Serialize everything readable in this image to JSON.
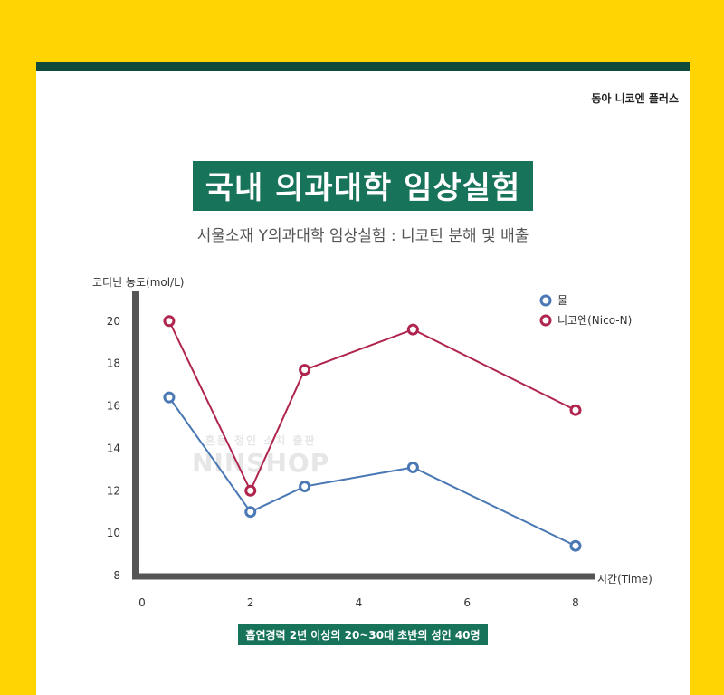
{
  "brand": "동아 니코엔 플러스",
  "title": "국내 의과대학 임상실험",
  "subtitle": "서울소재 Y의과대학 임상실험 : 니코틴 분해 및 배출",
  "footnote": "흡연경력 2년 이상의 20~30대 초반의 성인 40명",
  "watermark": {
    "line1": "흔들 정인 소치 출판",
    "line2": "NINSHOP"
  },
  "colors": {
    "background": "#FFD400",
    "header_bar": "#0F4A3A",
    "title_bg": "#17735A",
    "water": "#4A78B4",
    "nico": "#B0254D",
    "axis": "#555555"
  },
  "chart_data": {
    "type": "line",
    "ylabel": "코티닌 농도(mol/L)",
    "xlabel": "시간(Time)",
    "x_ticks": [
      0,
      2,
      4,
      6,
      8
    ],
    "y_ticks": [
      8,
      10,
      12,
      14,
      16,
      18,
      20
    ],
    "xlim": [
      0,
      8
    ],
    "ylim": [
      8,
      20.8
    ],
    "grid": false,
    "legend_position": "top-right",
    "series": [
      {
        "name": "물",
        "color": "#4A78B4",
        "x": [
          0.5,
          2,
          3,
          5,
          8
        ],
        "y": [
          16.4,
          11.0,
          12.2,
          13.1,
          9.4
        ]
      },
      {
        "name": "니코엔(Nico-N)",
        "color": "#B0254D",
        "x": [
          0.5,
          2,
          3,
          5,
          8
        ],
        "y": [
          20.0,
          12.0,
          17.7,
          19.6,
          15.8
        ]
      }
    ]
  }
}
